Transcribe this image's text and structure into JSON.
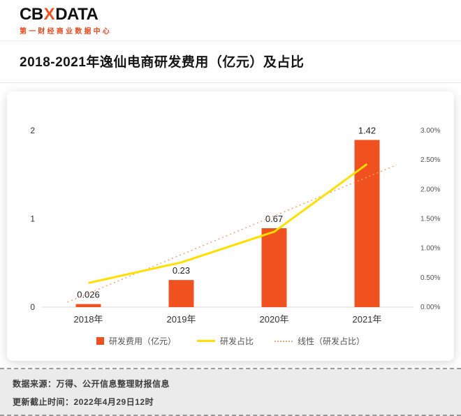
{
  "header": {
    "logo": {
      "part1": "CB",
      "part2": "X",
      "part3": "DATA",
      "subtitle": "第一财经商业数据中心"
    },
    "title": "2018-2021年逸仙电商研发费用（亿元）及占比"
  },
  "colors": {
    "brand_orange": "#F0511E",
    "bar": "#F0511E",
    "line_yellow": "#FFE000",
    "trend_dotted": "#F2A377",
    "subtitle_red": "#E8491D"
  },
  "chart_data": {
    "type": "bar+line",
    "title": "2018-2021年逸仙电商研发费用（亿元）及占比",
    "categories": [
      "2018年",
      "2019年",
      "2020年",
      "2021年"
    ],
    "series": [
      {
        "name": "研发费用（亿元）",
        "type": "bar",
        "axis": "left",
        "values": [
          0.026,
          0.23,
          0.67,
          1.42
        ],
        "labels": [
          "0.026",
          "0.23",
          "0.67",
          "1.42"
        ]
      },
      {
        "name": "研发占比",
        "type": "line",
        "axis": "right",
        "values_pct": [
          0.41,
          0.76,
          1.28,
          2.43
        ]
      },
      {
        "name": "线性（研发占比）",
        "type": "trend",
        "style": "dotted"
      }
    ],
    "left_axis": {
      "ticks": [
        "0",
        "1",
        "2"
      ],
      "range": [
        0,
        2
      ]
    },
    "right_axis": {
      "ticks": [
        "0.00%",
        "0.50%",
        "1.00%",
        "1.50%",
        "2.00%",
        "2.50%",
        "3.00%"
      ],
      "range_pct": [
        0,
        3
      ]
    },
    "legend": [
      "研发费用（亿元）",
      "研发占比",
      "线性（研发占比）"
    ],
    "grid": "off",
    "legend_position": "bottom",
    "bar_visual_max": 1.5
  },
  "footer": {
    "source": "数据来源：万得、公开信息整理财报信息",
    "updated": "更新截止时间：2022年4月29日12时"
  }
}
